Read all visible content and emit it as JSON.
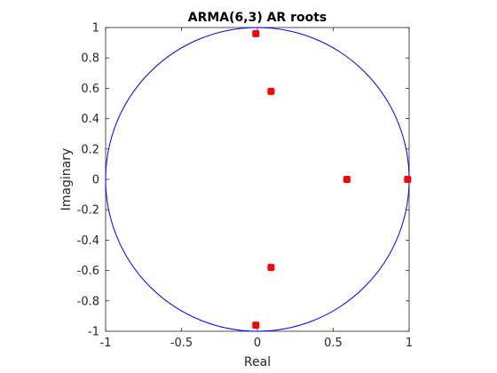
{
  "chart_data": {
    "type": "scatter",
    "title": "ARMA(6,3) AR roots",
    "xlabel": "Real",
    "ylabel": "Imaginary",
    "xlim": [
      -1,
      1
    ],
    "ylim": [
      -1,
      1
    ],
    "grid": false,
    "legend": "none",
    "aspect": "equal",
    "xticks": [
      "-1",
      "-0.5",
      "0",
      "0.5",
      "1"
    ],
    "yticks": [
      "1",
      "0.8",
      "0.6",
      "0.4",
      "0.2",
      "0",
      "-0.2",
      "-0.4",
      "-0.6",
      "-0.8",
      "-1"
    ],
    "unit_circle": {
      "radius": 1,
      "color": "#0000ff"
    },
    "marker_color": "#ff0000",
    "points": [
      {
        "x": -0.01,
        "y": 0.96
      },
      {
        "x": -0.01,
        "y": -0.96
      },
      {
        "x": 0.09,
        "y": 0.58
      },
      {
        "x": 0.09,
        "y": -0.58
      },
      {
        "x": 0.59,
        "y": 0.0
      },
      {
        "x": 0.99,
        "y": 0.0
      }
    ]
  }
}
